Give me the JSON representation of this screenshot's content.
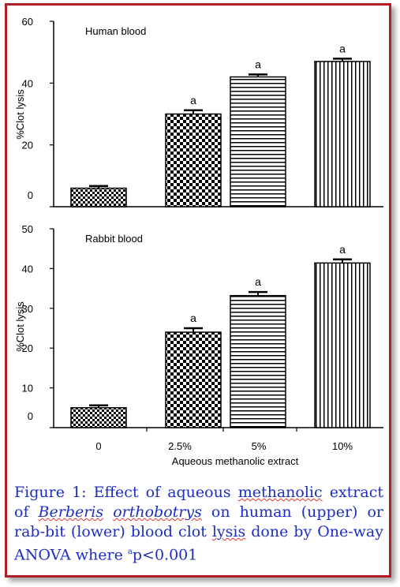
{
  "colors": {
    "frame": "#b01e2a",
    "caption": "#1d2fbf",
    "bar_fill": "#ffffff",
    "bar_ink": "#000000"
  },
  "chart_data": [
    {
      "type": "bar",
      "title": "Human blood",
      "ylabel": "%Clot lysis",
      "xlabel": "",
      "ylim": [
        0,
        60
      ],
      "yticks": [
        0,
        20,
        40,
        60
      ],
      "categories": [
        "0",
        "2.5%",
        "5%",
        "10%"
      ],
      "values": [
        6,
        30,
        42,
        47
      ],
      "errors": [
        0.7,
        1.2,
        0.8,
        0.9
      ],
      "annotations": [
        "",
        "a",
        "a",
        "a"
      ],
      "patterns": [
        "checker-small",
        "checker-large",
        "horizontal-lines",
        "vertical-lines"
      ]
    },
    {
      "type": "bar",
      "title": "Rabbit blood",
      "ylabel": "%Clot lysis",
      "xlabel": "Aqueous methanolic extract",
      "ylim": [
        0,
        50
      ],
      "yticks": [
        0,
        10,
        20,
        30,
        40,
        50
      ],
      "categories": [
        "0",
        "2.5%",
        "5%",
        "10%"
      ],
      "values": [
        5,
        24,
        33.2,
        41.4
      ],
      "errors": [
        0.6,
        1.0,
        0.9,
        0.9
      ],
      "annotations": [
        "",
        "a",
        "a",
        "a"
      ],
      "patterns": [
        "checker-small",
        "checker-large",
        "horizontal-lines",
        "vertical-lines"
      ]
    }
  ],
  "caption": {
    "part1": "Figure 1: Effect of aqueous ",
    "word_methanolic": "methanolic",
    "part2": " extract of ",
    "word_berberis": "Berberis",
    "space": " ",
    "word_orthobotrys": "orthobotrys",
    "part3": " on human (upper) or rab-bit (lower) blood clot ",
    "word_lysis": "lysis",
    "part4": " done by One-way ANOVA where ",
    "superscript": "a",
    "part5": "p<0.001"
  }
}
